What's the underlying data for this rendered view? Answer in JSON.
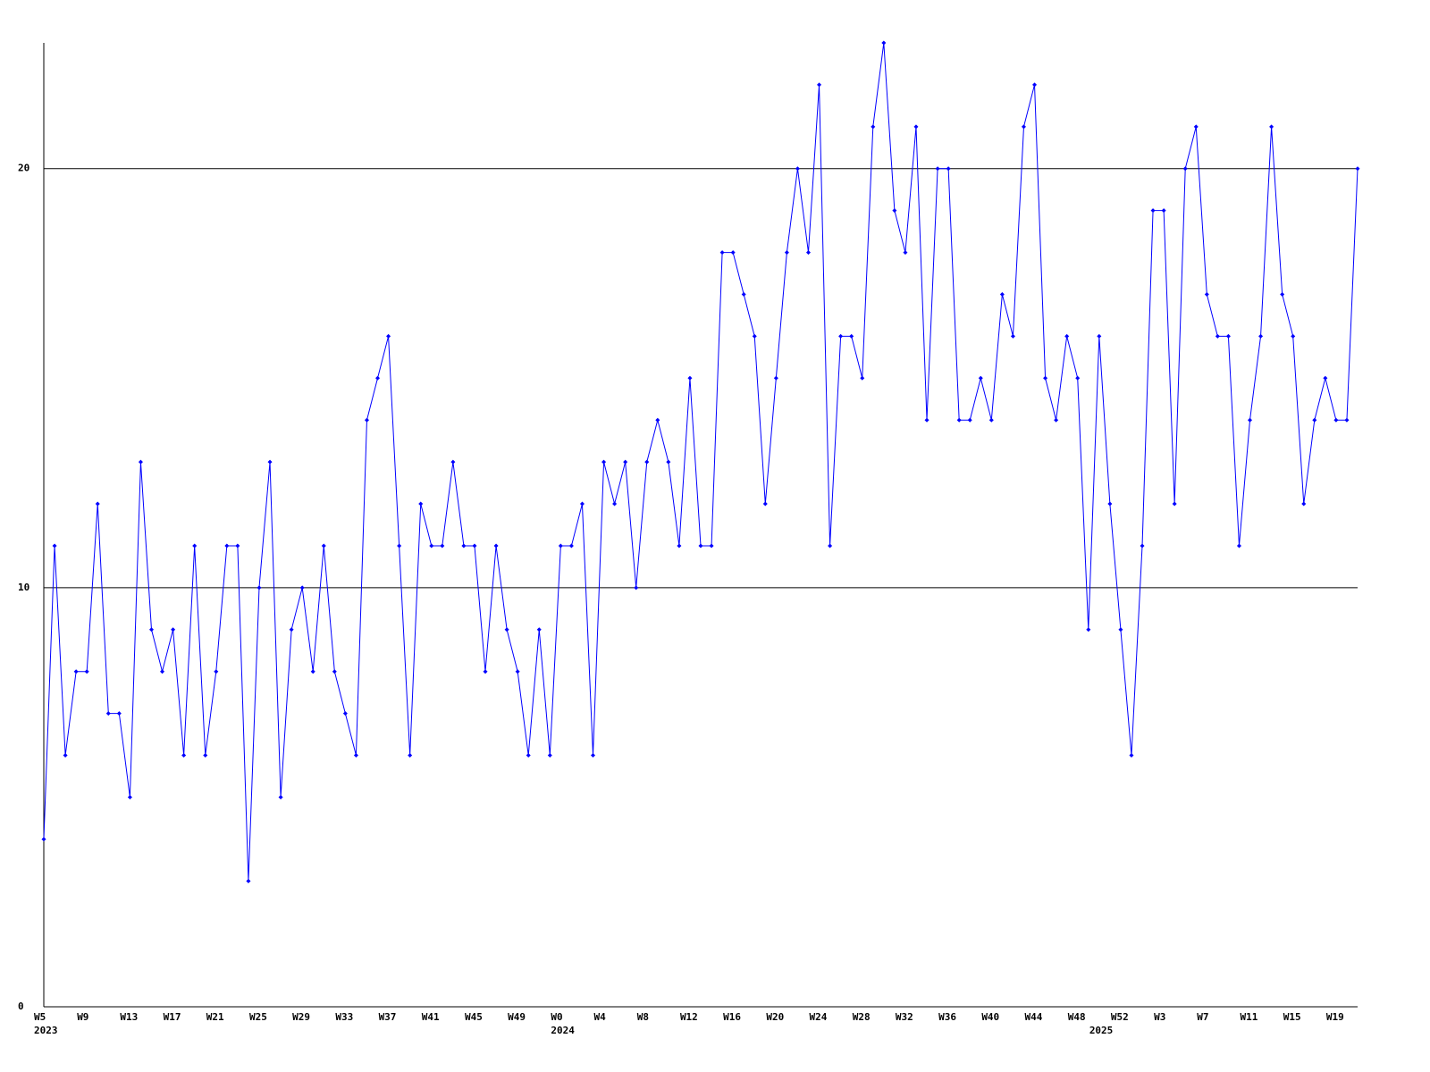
{
  "chart_data": {
    "type": "line",
    "color": "#0000ff",
    "grid": true,
    "ylim": [
      0,
      23
    ],
    "yticks": [
      0,
      10,
      20
    ],
    "categories": [
      "W5",
      null,
      null,
      null,
      "W9",
      null,
      null,
      null,
      "W13",
      null,
      null,
      null,
      "W17",
      null,
      null,
      null,
      "W21",
      null,
      null,
      null,
      "W25",
      null,
      null,
      null,
      "W29",
      null,
      null,
      null,
      "W33",
      null,
      null,
      null,
      "W37",
      null,
      null,
      null,
      "W41",
      null,
      null,
      null,
      "W45",
      null,
      null,
      null,
      "W49",
      null,
      null,
      null,
      "W0",
      null,
      null,
      null,
      "W4",
      null,
      null,
      null,
      "W8",
      null,
      null,
      null,
      "W12",
      null,
      null,
      null,
      "W16",
      null,
      null,
      null,
      "W20",
      null,
      null,
      null,
      "W24",
      null,
      null,
      null,
      "W28",
      null,
      null,
      null,
      "W32",
      null,
      null,
      null,
      "W36",
      null,
      null,
      null,
      "W40",
      null,
      null,
      null,
      "W44",
      null,
      null,
      null,
      "W48",
      null,
      null,
      null,
      "W52",
      null,
      null,
      null,
      "W3",
      null,
      null,
      null,
      "W7",
      null,
      null,
      null,
      "W11",
      null,
      null,
      null,
      "W15",
      null,
      null,
      null,
      "W19",
      null,
      null
    ],
    "years": [
      "2023",
      null,
      null,
      null,
      null,
      null,
      null,
      null,
      null,
      null,
      null,
      null,
      null,
      null,
      null,
      null,
      null,
      null,
      null,
      null,
      null,
      null,
      null,
      null,
      null,
      null,
      null,
      null,
      null,
      null,
      null,
      null,
      null,
      null,
      null,
      null,
      null,
      null,
      null,
      null,
      null,
      null,
      null,
      null,
      null,
      null,
      null,
      null,
      "2024",
      null,
      null,
      null,
      null,
      null,
      null,
      null,
      null,
      null,
      null,
      null,
      null,
      null,
      null,
      null,
      null,
      null,
      null,
      null,
      null,
      null,
      null,
      null,
      null,
      null,
      null,
      null,
      null,
      null,
      null,
      null,
      null,
      null,
      null,
      null,
      null,
      null,
      null,
      null,
      null,
      null,
      null,
      null,
      null,
      null,
      null,
      null,
      null,
      null,
      "2025",
      null,
      null,
      null,
      null,
      null,
      null,
      null,
      null,
      null,
      null,
      null,
      null,
      null,
      null,
      null,
      null,
      null,
      null,
      null,
      null,
      null,
      null
    ],
    "values": [
      4,
      11,
      6,
      8,
      8,
      12,
      7,
      7,
      5,
      13,
      9,
      8,
      9,
      6,
      11,
      6,
      8,
      11,
      11,
      3,
      10,
      13,
      5,
      9,
      10,
      8,
      11,
      8,
      7,
      6,
      14,
      15,
      16,
      11,
      6,
      12,
      11,
      11,
      13,
      11,
      11,
      8,
      11,
      9,
      8,
      6,
      9,
      6,
      11,
      11,
      12,
      6,
      13,
      12,
      13,
      10,
      13,
      14,
      13,
      11,
      15,
      11,
      11,
      18,
      18,
      17,
      16,
      12,
      15,
      18,
      20,
      18,
      22,
      11,
      16,
      16,
      15,
      21,
      23,
      19,
      18,
      21,
      14,
      20,
      20,
      14,
      14,
      15,
      14,
      17,
      16,
      21,
      22,
      15,
      14,
      16,
      15,
      9,
      16,
      12,
      9,
      6,
      11,
      19,
      19,
      12,
      20,
      21,
      17,
      16,
      16,
      11,
      14,
      16,
      21,
      17,
      16,
      12,
      14,
      15,
      14,
      14,
      20
    ]
  }
}
